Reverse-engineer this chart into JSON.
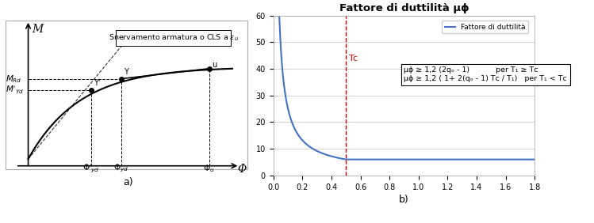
{
  "left_title": "a)",
  "right_title": "b)",
  "right_chart_title": "Fattore di duttilità μϕ",
  "right_legend_label": "Fattore di duttilità",
  "Tc": 0.5,
  "qo": 3.0,
  "T_max": 1.8,
  "ylim_right": [
    0,
    60
  ],
  "yticks_right": [
    0,
    10,
    20,
    30,
    40,
    50,
    60
  ],
  "xticks_right": [
    0,
    0.2,
    0.4,
    0.6,
    0.8,
    1.0,
    1.2,
    1.4,
    1.6,
    1.8
  ],
  "curve_color": "#4472C4",
  "Tc_line_color": "#CC0000",
  "background_color": "#ffffff",
  "left_bg": "#ffffff",
  "right_bg": "#ffffff",
  "phi_yd_prime": 0.27,
  "phi_yd": 0.4,
  "phi_u": 0.78,
  "curve_exp": 4.5,
  "curve_amp": 0.67,
  "curve_y0": 0.05,
  "m_rd_y": 0.68,
  "m_yd_prime_y": 0.48
}
